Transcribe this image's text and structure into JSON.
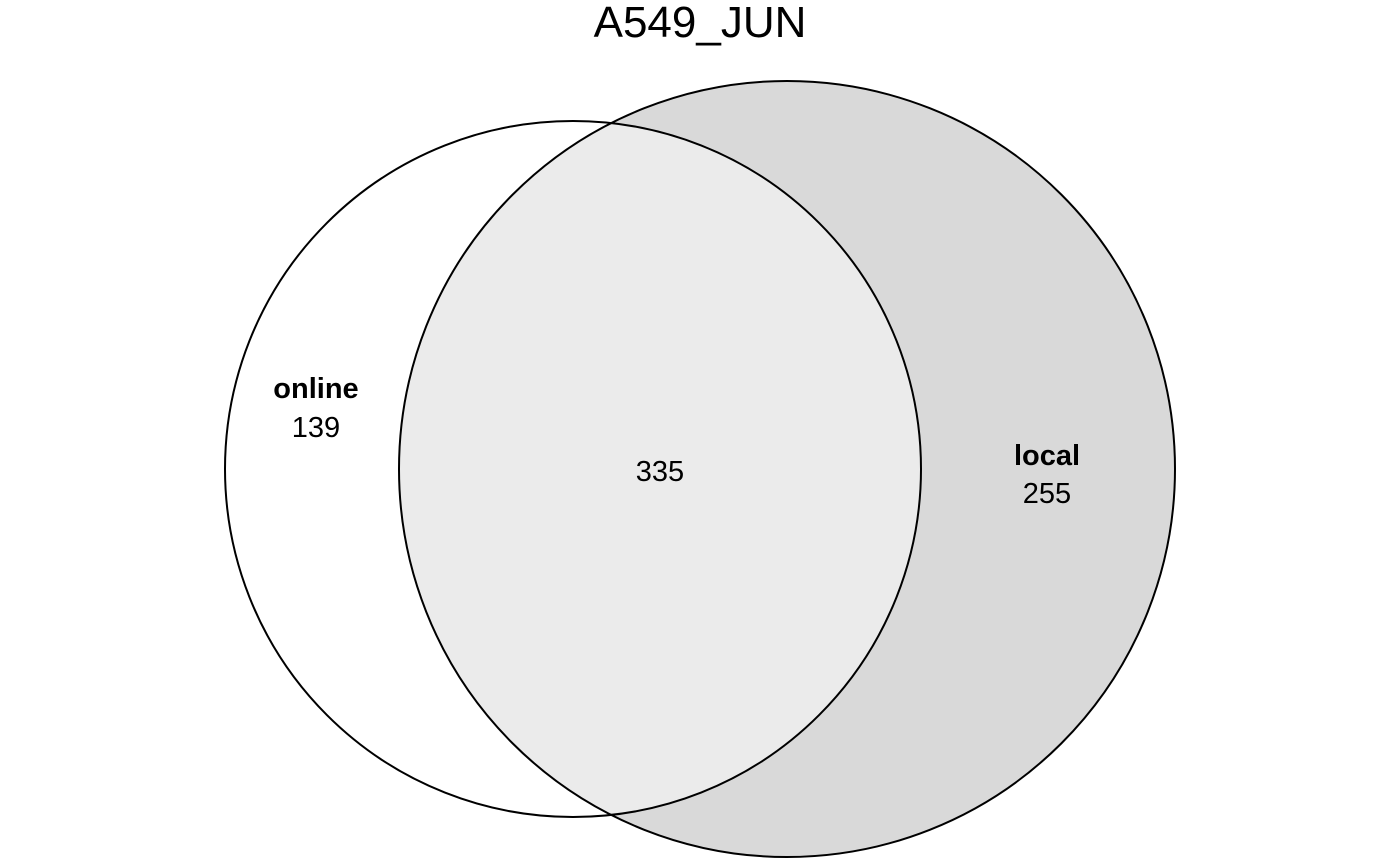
{
  "title": "A549_JUN",
  "sets": [
    {
      "key": "online",
      "name": "online",
      "count": "139",
      "fill": "#ffffff"
    },
    {
      "key": "local",
      "name": "local",
      "count": "255",
      "fill": "#d9d9d9"
    }
  ],
  "intersection": {
    "count": "335",
    "fill": "#ebebeb"
  },
  "stroke_color": "#000000"
}
